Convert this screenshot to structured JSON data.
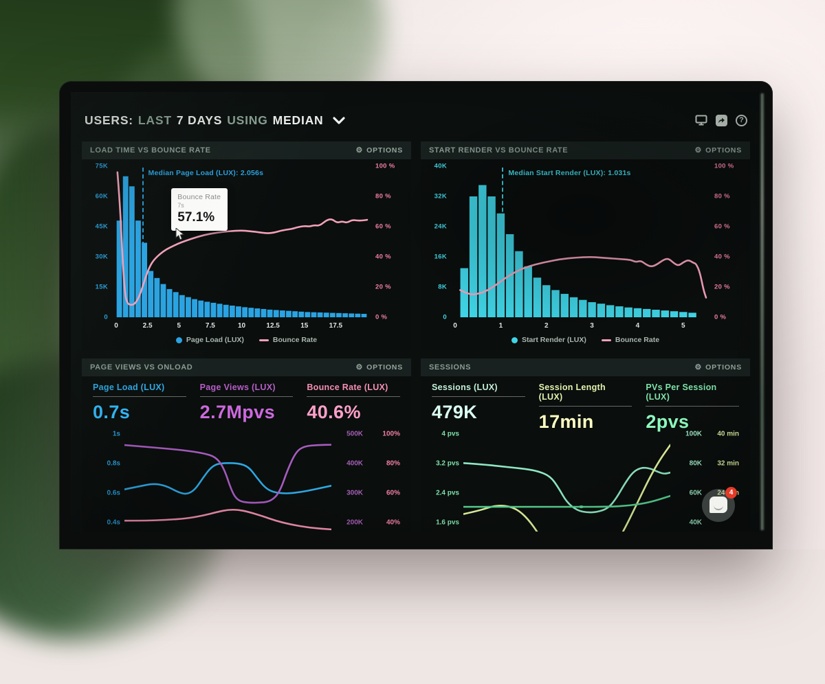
{
  "header": {
    "title_segments": [
      {
        "text": "USERS:",
        "style": "bright"
      },
      {
        "text": "LAST",
        "style": "dim"
      },
      {
        "text": "7 DAYS",
        "style": "bright"
      },
      {
        "text": "USING",
        "style": "dim"
      },
      {
        "text": "MEDIAN",
        "style": "bright"
      }
    ],
    "icons": [
      "display-icon",
      "share-icon",
      "help-icon"
    ]
  },
  "panels": [
    {
      "title": "LOAD TIME VS BOUNCE RATE",
      "options_label": "OPTIONS",
      "tooltip": {
        "title": "Bounce Rate",
        "subtitle": "7s",
        "value": "57.1%"
      }
    },
    {
      "title": "START RENDER VS BOUNCE RATE",
      "options_label": "OPTIONS"
    },
    {
      "title": "PAGE VIEWS VS ONLOAD",
      "options_label": "OPTIONS",
      "metrics": [
        {
          "label": "Page Load (LUX)",
          "value": "0.7s",
          "color": "#2ea9e4"
        },
        {
          "label": "Page Views (LUX)",
          "value": "2.7Mpvs",
          "color": "#b65ec6"
        },
        {
          "label": "Bounce Rate (LUX)",
          "value": "40.6%",
          "color": "#f58fb4"
        }
      ]
    },
    {
      "title": "SESSIONS",
      "options_label": "OPTIONS",
      "metrics": [
        {
          "label": "Sessions (LUX)",
          "value": "479K",
          "color": "#c3efd9"
        },
        {
          "label": "Session Length (LUX)",
          "value": "17min",
          "color": "#e4f2ae"
        },
        {
          "label": "PVs Per Session (LUX)",
          "value": "2pvs",
          "color": "#7fe3ab"
        }
      ]
    }
  ],
  "chat": {
    "badge": "4"
  },
  "chart_data": [
    {
      "id": "load-time-vs-bounce-rate",
      "type": "bar",
      "title": "Load Time vs Bounce Rate",
      "x_unit": "seconds",
      "x_max": 20,
      "x_ticks": [
        {
          "v": 0,
          "label": "0"
        },
        {
          "v": 2.5,
          "label": "2.5"
        },
        {
          "v": 5,
          "label": "5"
        },
        {
          "v": 7.5,
          "label": "7.5"
        },
        {
          "v": 10,
          "label": "10"
        },
        {
          "v": 12.5,
          "label": "12.5"
        },
        {
          "v": 15,
          "label": "15"
        },
        {
          "v": 17.5,
          "label": "17.5"
        }
      ],
      "y_left": {
        "labels": [
          "75K",
          "60K",
          "45K",
          "30K",
          "15K",
          "0"
        ],
        "color": "#2aa0dd",
        "max": 75
      },
      "y_right": {
        "labels": [
          "100 %",
          "80 %",
          "60 %",
          "40 %",
          "20 %",
          "0 %"
        ],
        "color": "#ef7fa2",
        "max": 100
      },
      "bars": {
        "name": "Page Load (LUX)",
        "color": "#2aa3e2",
        "unit": "K users",
        "start": 0,
        "step": 0.5,
        "y_max": 75,
        "values": [
          48,
          70,
          65,
          48,
          37,
          23,
          19.5,
          16.5,
          14,
          12.5,
          11,
          10,
          9,
          8.3,
          7.7,
          7.2,
          6.7,
          6.2,
          5.8,
          5.4,
          5,
          4.7,
          4.4,
          4.1,
          3.8,
          3.6,
          3.4,
          3.2,
          3,
          2.8,
          2.6,
          2.5,
          2.4,
          2.3,
          2.2,
          2.1,
          2,
          1.9,
          1.8,
          1.7
        ]
      },
      "line": {
        "name": "Bounce Rate",
        "color": "#f2a0b9",
        "unit": "%",
        "points": [
          [
            0.005,
            96
          ],
          [
            0.015,
            75
          ],
          [
            0.025,
            40
          ],
          [
            0.035,
            15
          ],
          [
            0.045,
            9
          ],
          [
            0.06,
            8
          ],
          [
            0.075,
            9
          ],
          [
            0.09,
            13
          ],
          [
            0.105,
            20
          ],
          [
            0.12,
            28
          ],
          [
            0.135,
            34
          ],
          [
            0.15,
            38
          ],
          [
            0.175,
            42
          ],
          [
            0.2,
            45
          ],
          [
            0.225,
            47
          ],
          [
            0.25,
            49
          ],
          [
            0.3,
            52
          ],
          [
            0.35,
            54.5
          ],
          [
            0.4,
            56
          ],
          [
            0.45,
            57
          ],
          [
            0.5,
            57.5
          ],
          [
            0.53,
            57
          ],
          [
            0.56,
            56.5
          ],
          [
            0.6,
            55.5
          ],
          [
            0.63,
            56
          ],
          [
            0.66,
            57.5
          ],
          [
            0.7,
            58.5
          ],
          [
            0.72,
            59.5
          ],
          [
            0.75,
            60.5
          ],
          [
            0.77,
            60
          ],
          [
            0.79,
            61
          ],
          [
            0.81,
            60.5
          ],
          [
            0.84,
            64.5
          ],
          [
            0.86,
            65
          ],
          [
            0.88,
            62.5
          ],
          [
            0.9,
            63.5
          ],
          [
            0.92,
            62.5
          ],
          [
            0.94,
            64.5
          ],
          [
            0.96,
            64
          ],
          [
            0.98,
            64
          ],
          [
            1,
            64.5
          ]
        ]
      },
      "median": {
        "label": "Median Page Load (LUX): 2.056s",
        "value": 2.056,
        "color": "#2aa0dd",
        "height_pct": 52
      },
      "legend": [
        {
          "marker": "dot",
          "label": "Page Load (LUX)",
          "color": "#2aa3e2"
        },
        {
          "marker": "dash",
          "label": "Bounce Rate",
          "color": "#f2a0b9"
        }
      ]
    },
    {
      "id": "start-render-vs-bounce-rate",
      "type": "bar",
      "title": "Start Render vs Bounce Rate",
      "x_unit": "seconds",
      "x_max": 5.5,
      "x_ticks": [
        {
          "v": 0,
          "label": "0"
        },
        {
          "v": 1,
          "label": "1"
        },
        {
          "v": 2,
          "label": "2"
        },
        {
          "v": 3,
          "label": "3"
        },
        {
          "v": 4,
          "label": "4"
        },
        {
          "v": 5,
          "label": "5"
        }
      ],
      "y_left": {
        "labels": [
          "40K",
          "32K",
          "24K",
          "16K",
          "8K",
          "0"
        ],
        "color": "#43d6e6",
        "max": 40
      },
      "y_right": {
        "labels": [
          "100 %",
          "80 %",
          "60 %",
          "40 %",
          "20 %",
          "0 %"
        ],
        "color": "#ef7fa2",
        "max": 100
      },
      "bars": {
        "name": "Start Render (LUX)",
        "color": "#3fd4e6",
        "unit": "K users",
        "start": 0.1,
        "step": 0.2,
        "y_max": 40,
        "values": [
          13,
          32,
          35,
          32,
          27.5,
          22,
          17.5,
          13.5,
          10.5,
          8.5,
          7.2,
          6.2,
          5.3,
          4.6,
          4,
          3.6,
          3.2,
          2.9,
          2.6,
          2.4,
          2.2,
          2,
          1.8,
          1.6,
          1.4,
          1.2
        ]
      },
      "line": {
        "name": "Bounce Rate",
        "color": "#f2a0b9",
        "unit": "%",
        "points": [
          [
            0.02,
            18
          ],
          [
            0.05,
            15.5
          ],
          [
            0.08,
            15
          ],
          [
            0.12,
            17
          ],
          [
            0.16,
            21
          ],
          [
            0.2,
            26
          ],
          [
            0.24,
            30
          ],
          [
            0.28,
            33
          ],
          [
            0.32,
            35
          ],
          [
            0.36,
            36.5
          ],
          [
            0.42,
            38.5
          ],
          [
            0.48,
            39.5
          ],
          [
            0.54,
            40
          ],
          [
            0.58,
            39.5
          ],
          [
            0.62,
            39
          ],
          [
            0.66,
            38.5
          ],
          [
            0.7,
            38
          ],
          [
            0.72,
            36.5
          ],
          [
            0.74,
            37.5
          ],
          [
            0.76,
            35
          ],
          [
            0.78,
            33.5
          ],
          [
            0.8,
            34.5
          ],
          [
            0.83,
            38
          ],
          [
            0.85,
            39
          ],
          [
            0.87,
            36
          ],
          [
            0.89,
            34
          ],
          [
            0.91,
            36.5
          ],
          [
            0.93,
            38
          ],
          [
            0.95,
            36
          ],
          [
            0.96,
            35.5
          ],
          [
            0.975,
            30
          ],
          [
            0.99,
            18
          ],
          [
            1,
            13
          ]
        ]
      },
      "median": {
        "label": "Median Start Render (LUX): 1.031s",
        "value": 1.031,
        "color": "#43d6e6",
        "height_pct": 38
      },
      "legend": [
        {
          "marker": "dot",
          "label": "Start Render (LUX)",
          "color": "#3fd4e6"
        },
        {
          "marker": "dash",
          "label": "Bounce Rate",
          "color": "#f2a0b9"
        }
      ]
    },
    {
      "id": "page-views-vs-onload",
      "type": "line",
      "title": "Page Views vs Onload",
      "rows": [
        {
          "left": "1s",
          "right1": "500K",
          "right2": "100%"
        },
        {
          "left": "0.8s",
          "right1": "400K",
          "right2": "80%"
        },
        {
          "left": "0.6s",
          "right1": "300K",
          "right2": "60%"
        },
        {
          "left": "0.4s",
          "right1": "200K",
          "right2": "40%"
        }
      ],
      "left_color": "#2aa0dd",
      "right1_color": "#a55fb5",
      "right2_color": "#f27fa5",
      "series": [
        {
          "name": "Page Load (LUX)",
          "color": "#2ea9e4",
          "axis": {
            "top": 1.0,
            "step": 0.2,
            "unit": "s"
          },
          "points": [
            [
              0,
              0.62
            ],
            [
              0.07,
              0.64
            ],
            [
              0.14,
              0.66
            ],
            [
              0.2,
              0.645
            ],
            [
              0.26,
              0.6
            ],
            [
              0.3,
              0.585
            ],
            [
              0.34,
              0.615
            ],
            [
              0.38,
              0.7
            ],
            [
              0.42,
              0.775
            ],
            [
              0.46,
              0.8
            ],
            [
              0.55,
              0.8
            ],
            [
              0.6,
              0.775
            ],
            [
              0.64,
              0.7
            ],
            [
              0.68,
              0.63
            ],
            [
              0.72,
              0.6
            ],
            [
              0.78,
              0.59
            ],
            [
              0.85,
              0.6
            ],
            [
              0.92,
              0.62
            ],
            [
              1,
              0.645
            ]
          ]
        },
        {
          "name": "Page Views (LUX)",
          "color": "#a85cc0",
          "axis": {
            "top": 500,
            "step": 100,
            "unit": "K"
          },
          "points": [
            [
              0,
              462
            ],
            [
              0.1,
              456
            ],
            [
              0.2,
              450
            ],
            [
              0.3,
              443
            ],
            [
              0.38,
              434
            ],
            [
              0.44,
              422
            ],
            [
              0.48,
              385
            ],
            [
              0.52,
              300
            ],
            [
              0.55,
              270
            ],
            [
              0.6,
              264
            ],
            [
              0.66,
              264
            ],
            [
              0.71,
              270
            ],
            [
              0.75,
              300
            ],
            [
              0.79,
              380
            ],
            [
              0.83,
              440
            ],
            [
              0.87,
              458
            ],
            [
              0.93,
              462
            ],
            [
              1,
              463
            ]
          ]
        },
        {
          "name": "Bounce Rate (LUX)",
          "color": "#ef8fae",
          "axis": {
            "top": 100,
            "step": 20,
            "unit": "%"
          },
          "points": [
            [
              0,
              40.5
            ],
            [
              0.1,
              40.5
            ],
            [
              0.2,
              41
            ],
            [
              0.3,
              42
            ],
            [
              0.38,
              44
            ],
            [
              0.45,
              46.5
            ],
            [
              0.5,
              48
            ],
            [
              0.55,
              48
            ],
            [
              0.6,
              46.5
            ],
            [
              0.67,
              43.5
            ],
            [
              0.73,
              40.5
            ],
            [
              0.8,
              38
            ],
            [
              0.9,
              35.5
            ],
            [
              1,
              34.5
            ]
          ]
        }
      ]
    },
    {
      "id": "sessions",
      "type": "line",
      "title": "Sessions",
      "rows": [
        {
          "left": "4 pvs",
          "right1": "100K",
          "right2": "40 min"
        },
        {
          "left": "3.2 pvs",
          "right1": "80K",
          "right2": "32 min"
        },
        {
          "left": "2.4 pvs",
          "right1": "60K",
          "right2": "24 min"
        },
        {
          "left": "1.6 pvs",
          "right1": "40K",
          "right2": ""
        }
      ],
      "left_color": "#7fe3ab",
      "right1_color": "#9fe8c6",
      "right2_color": "#d9ec9e",
      "series": [
        {
          "name": "Sessions (LUX)",
          "color": "#8fe7c3",
          "axis": {
            "top": 100,
            "step": 20,
            "unit": "K"
          },
          "points": [
            [
              0,
              80
            ],
            [
              0.1,
              79
            ],
            [
              0.2,
              77.5
            ],
            [
              0.3,
              76
            ],
            [
              0.36,
              74.5
            ],
            [
              0.42,
              71
            ],
            [
              0.46,
              63
            ],
            [
              0.5,
              53
            ],
            [
              0.55,
              47.5
            ],
            [
              0.6,
              46
            ],
            [
              0.65,
              46.5
            ],
            [
              0.7,
              49
            ],
            [
              0.74,
              56
            ],
            [
              0.78,
              66
            ],
            [
              0.82,
              74
            ],
            [
              0.86,
              77
            ],
            [
              0.9,
              76.5
            ],
            [
              0.94,
              74
            ],
            [
              0.97,
              72.5
            ],
            [
              1,
              73.5
            ]
          ]
        },
        {
          "name": "Session Length (LUX)",
          "color": "#dff09b",
          "axis": {
            "top": 40,
            "step": 8,
            "unit": "min"
          },
          "points": [
            [
              0,
              18
            ],
            [
              0.08,
              19
            ],
            [
              0.16,
              20.5
            ],
            [
              0.24,
              20
            ],
            [
              0.3,
              17.5
            ],
            [
              0.36,
              13
            ],
            [
              0.42,
              7
            ],
            [
              0.48,
              2
            ],
            [
              0.54,
              -1
            ],
            [
              0.6,
              0
            ],
            [
              0.66,
              3
            ],
            [
              0.72,
              8
            ],
            [
              0.78,
              14
            ],
            [
              0.84,
              21
            ],
            [
              0.9,
              28
            ],
            [
              0.95,
              33
            ],
            [
              1,
              37
            ]
          ]
        },
        {
          "name": "PVs Per Session (LUX)",
          "color": "#57cf8f",
          "axis": {
            "top": 4,
            "step": 0.8,
            "unit": "pvs"
          },
          "points": [
            [
              0,
              2
            ],
            [
              0.2,
              2
            ],
            [
              0.4,
              2
            ],
            [
              0.55,
              2
            ],
            [
              0.7,
              2
            ],
            [
              0.8,
              2.03
            ],
            [
              0.9,
              2.12
            ],
            [
              1,
              2.3
            ]
          ],
          "marker": {
            "x": 0.57
          }
        }
      ]
    }
  ]
}
